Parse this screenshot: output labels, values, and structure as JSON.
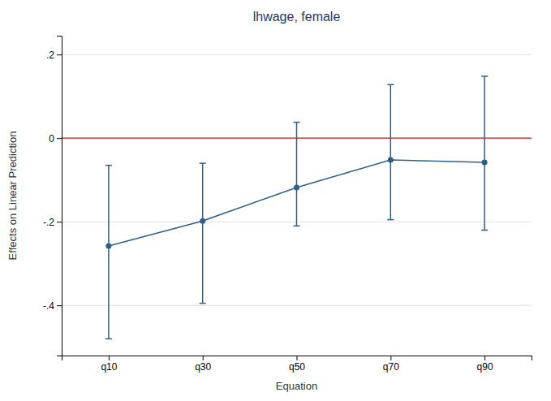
{
  "chart_data": {
    "type": "line",
    "title": "lhwage, female",
    "x_label": "Equation",
    "y_label": "Effects on Linear Prediction",
    "categories": [
      "q10",
      "q30",
      "q50",
      "q70",
      "q90"
    ],
    "values": [
      -0.258,
      -0.198,
      -0.118,
      -0.052,
      -0.058
    ],
    "lower": [
      -0.48,
      -0.395,
      -0.21,
      -0.195,
      -0.22
    ],
    "upper": [
      -0.065,
      -0.06,
      0.038,
      0.128,
      0.148
    ],
    "reference_lines": [
      {
        "value": 0,
        "color": "#cc2222"
      }
    ],
    "ylim": [
      -0.52,
      0.245
    ],
    "yticks": [
      {
        "value": -0.4,
        "label": "-.4"
      },
      {
        "value": -0.2,
        "label": "-.2"
      },
      0,
      {
        "value": 0.2,
        "label": ".2"
      }
    ],
    "color": "#2e5f8a",
    "marker": "circle",
    "grid": true
  }
}
